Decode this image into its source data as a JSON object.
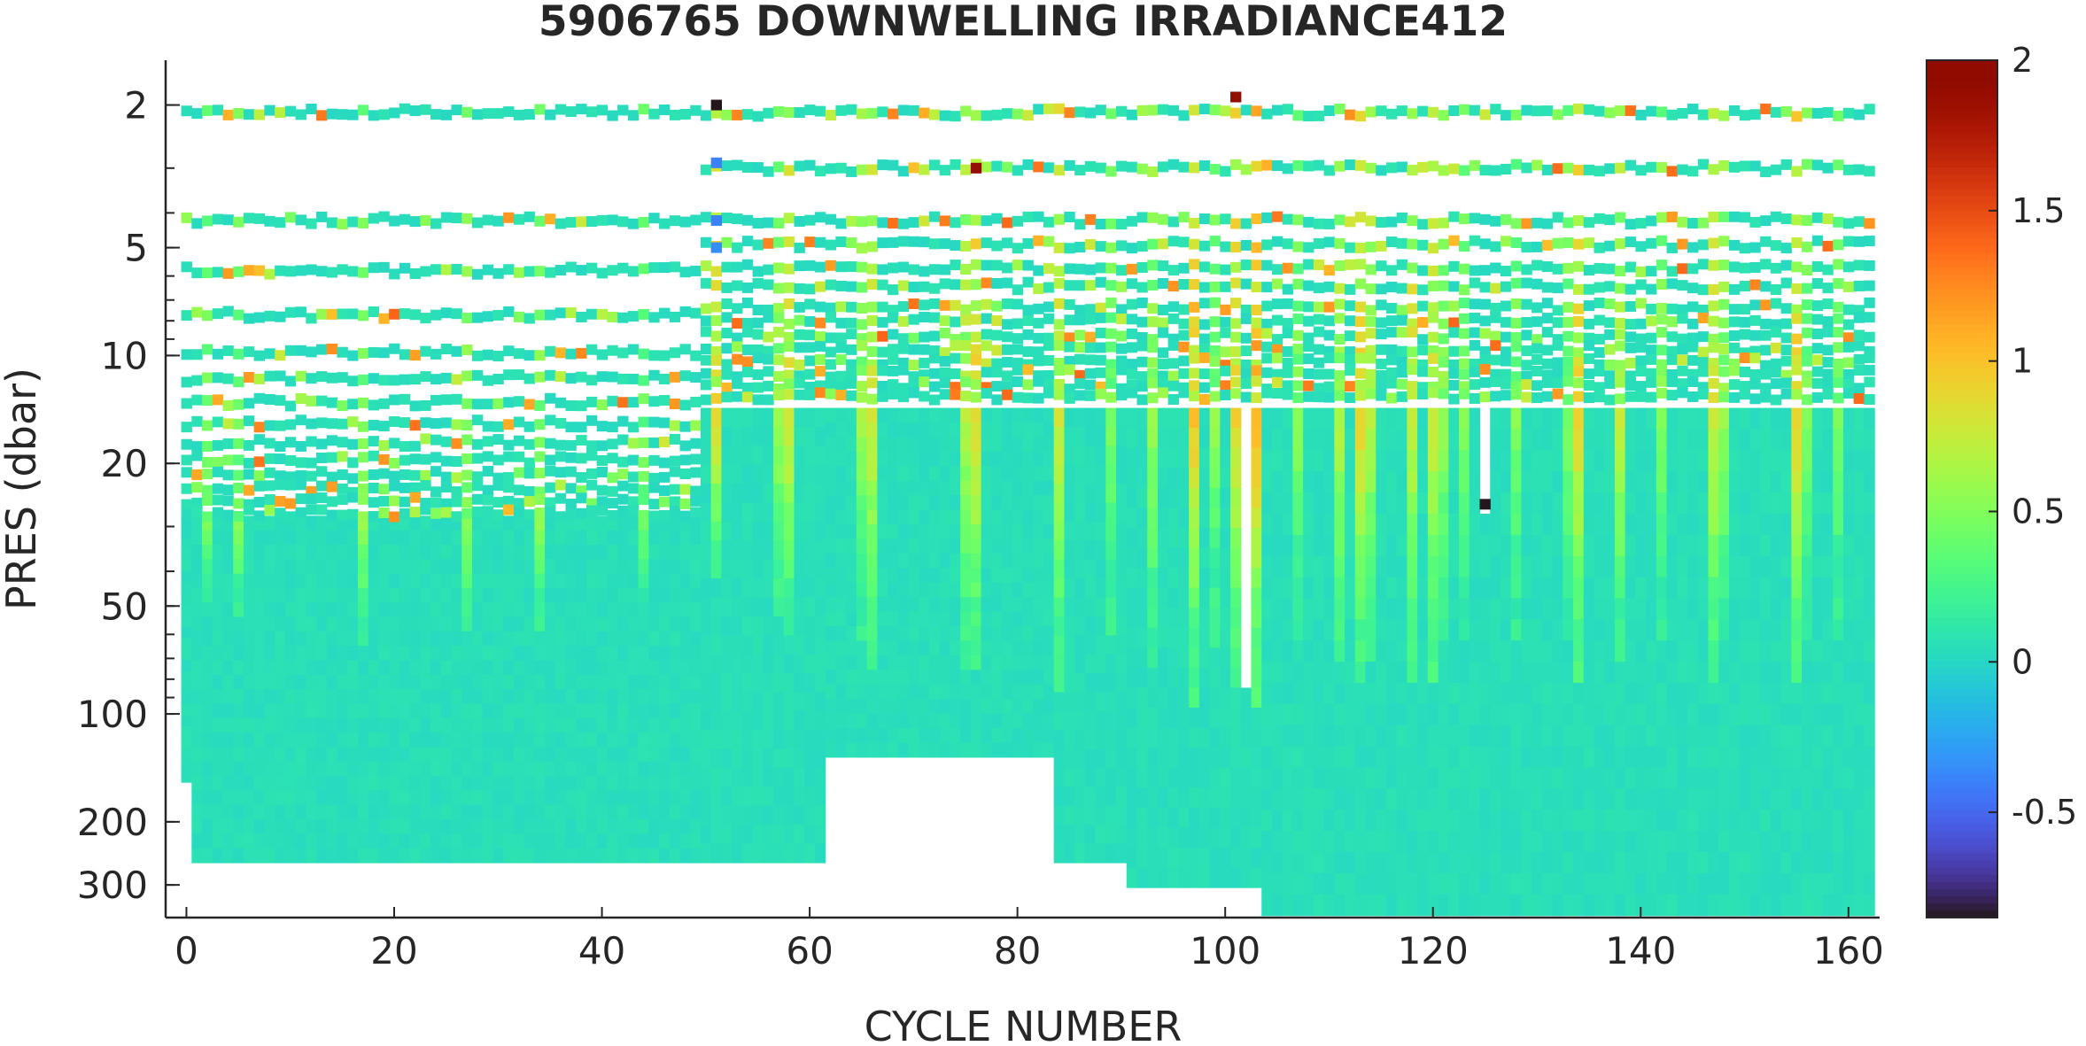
{
  "chart_data": {
    "type": "heatmap",
    "title": "5906765  DOWNWELLING IRRADIANCE412",
    "xlabel": "CYCLE NUMBER",
    "ylabel": "PRES (dbar)",
    "xlim": [
      -2,
      163
    ],
    "ylim": [
      1.5,
      370
    ],
    "y_scale": "log",
    "x_ticks": [
      0,
      20,
      40,
      60,
      80,
      100,
      120,
      140,
      160
    ],
    "x_tick_labels": [
      "0",
      "20",
      "40",
      "60",
      "80",
      "100",
      "120",
      "140",
      "160"
    ],
    "y_ticks": [
      2,
      5,
      10,
      20,
      50,
      100,
      200,
      300
    ],
    "y_tick_labels": [
      "2",
      "5",
      "10",
      "20",
      "50",
      "100",
      "200",
      "300"
    ],
    "colorbar": {
      "colormap": "turbo",
      "range": [
        -0.85,
        2.0
      ],
      "ticks": [
        -0.5,
        0,
        0.5,
        1,
        1.5,
        2
      ],
      "tick_labels": [
        "-0.5",
        "0",
        "0.5",
        "1",
        "1.5",
        "2"
      ]
    },
    "cycles": [
      0,
      162
    ],
    "background_value": 0.05,
    "shallow_levels_early": [
      2.1,
      4.2,
      5.8,
      7.7,
      9.8,
      11.6,
      13.5,
      15.5,
      17.5,
      19.5,
      21.5,
      23.5,
      25.5,
      27.5
    ],
    "shallow_levels_late": [
      2.1,
      3.0,
      4.2,
      4.9,
      5.7,
      6.4,
      7.3,
      8.0,
      8.8,
      9.6,
      10.4,
      11.2,
      12.1,
      13.0,
      14.0
    ],
    "data_top_pressure": [
      {
        "cycles": [
          0,
          50
        ],
        "pres": 28
      },
      {
        "cycles": [
          50,
          162
        ],
        "pres": 14
      }
    ],
    "max_pressure": [
      {
        "cycles": [
          0,
          1
        ],
        "pres": 155
      },
      {
        "cycles": [
          1,
          62
        ],
        "pres": 260
      },
      {
        "cycles": [
          62,
          84
        ],
        "pres": 132
      },
      {
        "cycles": [
          84,
          91
        ],
        "pres": 260
      },
      {
        "cycles": [
          91,
          104
        ],
        "pres": 305
      },
      {
        "cycles": [
          104,
          162
        ],
        "pres": 365
      }
    ],
    "missing_columns": [
      {
        "cycle": 102,
        "from_pres": 14,
        "to_pres": 78
      },
      {
        "cycle": 125,
        "from_pres": 15,
        "to_pres": 26
      }
    ],
    "bright_profiles": [
      {
        "cycle": 2,
        "value": 0.5,
        "to_pres": 45
      },
      {
        "cycle": 5,
        "value": 0.5,
        "to_pres": 50
      },
      {
        "cycle": 17,
        "value": 0.55,
        "to_pres": 60
      },
      {
        "cycle": 27,
        "value": 0.55,
        "to_pres": 55
      },
      {
        "cycle": 34,
        "value": 0.55,
        "to_pres": 55
      },
      {
        "cycle": 44,
        "value": 0.45,
        "to_pres": 45
      },
      {
        "cycle": 51,
        "value": 0.9,
        "to_pres": 40
      },
      {
        "cycle": 57,
        "value": 0.6,
        "to_pres": 50
      },
      {
        "cycle": 58,
        "value": 0.8,
        "to_pres": 60
      },
      {
        "cycle": 65,
        "value": 0.6,
        "to_pres": 60
      },
      {
        "cycle": 66,
        "value": 0.8,
        "to_pres": 70
      },
      {
        "cycle": 75,
        "value": 0.7,
        "to_pres": 70
      },
      {
        "cycle": 76,
        "value": 0.9,
        "to_pres": 75
      },
      {
        "cycle": 84,
        "value": 0.8,
        "to_pres": 80
      },
      {
        "cycle": 89,
        "value": 0.5,
        "to_pres": 60
      },
      {
        "cycle": 93,
        "value": 0.6,
        "to_pres": 70
      },
      {
        "cycle": 97,
        "value": 1.0,
        "to_pres": 90
      },
      {
        "cycle": 99,
        "value": 0.55,
        "to_pres": 60
      },
      {
        "cycle": 101,
        "value": 0.9,
        "to_pres": 80
      },
      {
        "cycle": 103,
        "value": 1.1,
        "to_pres": 90
      },
      {
        "cycle": 107,
        "value": 0.5,
        "to_pres": 60
      },
      {
        "cycle": 111,
        "value": 0.7,
        "to_pres": 70
      },
      {
        "cycle": 113,
        "value": 0.9,
        "to_pres": 80
      },
      {
        "cycle": 114,
        "value": 0.7,
        "to_pres": 65
      },
      {
        "cycle": 118,
        "value": 0.8,
        "to_pres": 75
      },
      {
        "cycle": 120,
        "value": 0.8,
        "to_pres": 80
      },
      {
        "cycle": 121,
        "value": 0.6,
        "to_pres": 60
      },
      {
        "cycle": 123,
        "value": 0.5,
        "to_pres": 55
      },
      {
        "cycle": 128,
        "value": 0.5,
        "to_pres": 55
      },
      {
        "cycle": 133,
        "value": 0.5,
        "to_pres": 60
      },
      {
        "cycle": 134,
        "value": 0.9,
        "to_pres": 80
      },
      {
        "cycle": 138,
        "value": 0.7,
        "to_pres": 70
      },
      {
        "cycle": 142,
        "value": 0.55,
        "to_pres": 60
      },
      {
        "cycle": 147,
        "value": 0.8,
        "to_pres": 75
      },
      {
        "cycle": 148,
        "value": 0.6,
        "to_pres": 60
      },
      {
        "cycle": 155,
        "value": 0.9,
        "to_pres": 80
      },
      {
        "cycle": 156,
        "value": 0.5,
        "to_pres": 60
      },
      {
        "cycle": 159,
        "value": 0.5,
        "to_pres": 55
      }
    ],
    "point_outliers": [
      {
        "cycle": 51,
        "pres": 2.0,
        "value": -0.85
      },
      {
        "cycle": 51,
        "pres": 2.9,
        "value": -0.4
      },
      {
        "cycle": 51,
        "pres": 4.2,
        "value": -0.4
      },
      {
        "cycle": 51,
        "pres": 5.0,
        "value": -0.35
      },
      {
        "cycle": 76,
        "pres": 3.0,
        "value": 1.9
      },
      {
        "cycle": 101,
        "pres": 1.9,
        "value": 2.0
      },
      {
        "cycle": 125,
        "pres": 26,
        "value": -0.85
      }
    ]
  }
}
